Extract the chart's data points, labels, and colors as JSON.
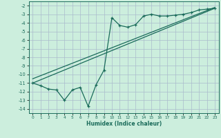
{
  "xlabel": "Humidex (Indice chaleur)",
  "bg_color": "#cceedd",
  "grid_color": "#aabbcc",
  "line_color": "#1a6b5a",
  "x_data": [
    0,
    1,
    2,
    3,
    4,
    5,
    6,
    7,
    8,
    9,
    10,
    11,
    12,
    13,
    14,
    15,
    16,
    17,
    18,
    19,
    20,
    21,
    22,
    23
  ],
  "y_data": [
    -11.0,
    -11.3,
    -11.7,
    -11.8,
    -13.0,
    -11.8,
    -11.5,
    -13.7,
    -11.2,
    -9.5,
    -3.4,
    -4.3,
    -4.5,
    -4.2,
    -3.2,
    -3.0,
    -3.2,
    -3.2,
    -3.1,
    -3.0,
    -2.8,
    -2.5,
    -2.4,
    -2.3
  ],
  "line1_x": [
    0,
    23
  ],
  "line1_y": [
    -11.0,
    -2.3
  ],
  "line2_x": [
    0,
    23
  ],
  "line2_y": [
    -10.5,
    -2.2
  ],
  "ylim": [
    -14.5,
    -1.5
  ],
  "xlim": [
    -0.5,
    23.5
  ],
  "yticks": [
    -14,
    -13,
    -12,
    -11,
    -10,
    -9,
    -8,
    -7,
    -6,
    -5,
    -4,
    -3,
    -2
  ],
  "xticks": [
    0,
    1,
    2,
    3,
    4,
    5,
    6,
    7,
    8,
    9,
    10,
    11,
    12,
    13,
    14,
    15,
    16,
    17,
    18,
    19,
    20,
    21,
    22,
    23
  ]
}
